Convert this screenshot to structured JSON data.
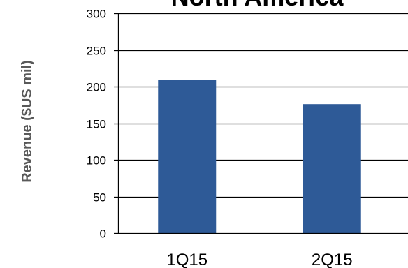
{
  "chart_data": {
    "type": "bar",
    "title": "North America",
    "xlabel": "",
    "ylabel": "Revenue ($US mil)",
    "categories": [
      "1Q15",
      "2Q15"
    ],
    "series": [
      {
        "values": [
          209,
          176
        ]
      }
    ],
    "ylim": [
      0,
      300
    ],
    "yticks": [
      0,
      50,
      100,
      150,
      200,
      250,
      300
    ],
    "grid": true,
    "legend": "none",
    "colors": {
      "bar": "#2E5A97",
      "grid": "#000000"
    }
  }
}
